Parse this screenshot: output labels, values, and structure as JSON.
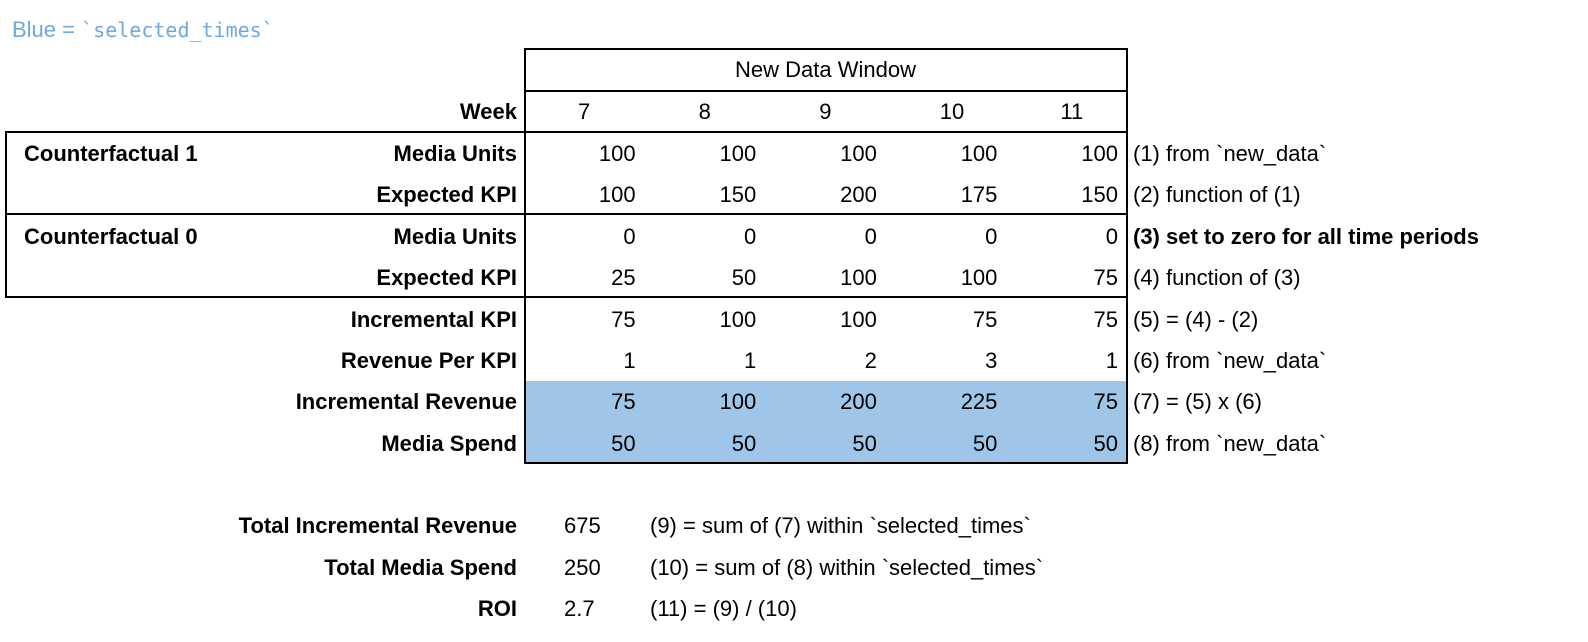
{
  "legend": {
    "prefix": "Blue = ",
    "code": "`selected_times`",
    "color": "#6fa8dc",
    "highlight_color": "#9fc5e8"
  },
  "header": {
    "window_title": "New Data Window",
    "week_label": "Week",
    "weeks": [
      "7",
      "8",
      "9",
      "10",
      "11"
    ]
  },
  "groups": [
    {
      "label": "Counterfactual 1"
    },
    {
      "label": "Counterfactual 0"
    }
  ],
  "rows": [
    {
      "label": "Media Units",
      "values": [
        "100",
        "100",
        "100",
        "100",
        "100"
      ],
      "note": "(1) from `new_data`",
      "note_bold": false,
      "highlighted": false
    },
    {
      "label": "Expected KPI",
      "values": [
        "100",
        "150",
        "200",
        "175",
        "150"
      ],
      "note": "(2) function of (1)",
      "note_bold": false,
      "highlighted": false
    },
    {
      "label": "Media Units",
      "values": [
        "0",
        "0",
        "0",
        "0",
        "0"
      ],
      "note": "(3) set to zero for all time periods",
      "note_bold": true,
      "highlighted": false
    },
    {
      "label": "Expected KPI",
      "values": [
        "25",
        "50",
        "100",
        "100",
        "75"
      ],
      "note": "(4) function of (3)",
      "note_bold": false,
      "highlighted": false
    },
    {
      "label": "Incremental KPI",
      "values": [
        "75",
        "100",
        "100",
        "75",
        "75"
      ],
      "note": "(5) = (4) - (2)",
      "note_bold": false,
      "highlighted": false
    },
    {
      "label": "Revenue Per KPI",
      "values": [
        "1",
        "1",
        "2",
        "3",
        "1"
      ],
      "note": "(6) from `new_data`",
      "note_bold": false,
      "highlighted": false
    },
    {
      "label": "Incremental Revenue",
      "values": [
        "75",
        "100",
        "200",
        "225",
        "75"
      ],
      "note": "(7) = (5) x (6)",
      "note_bold": false,
      "highlighted": true
    },
    {
      "label": "Media Spend",
      "values": [
        "50",
        "50",
        "50",
        "50",
        "50"
      ],
      "note": "(8) from `new_data`",
      "note_bold": false,
      "highlighted": true
    }
  ],
  "totals": [
    {
      "label": "Total Incremental Revenue",
      "value": "675",
      "note": "(9) = sum of (7) within `selected_times`"
    },
    {
      "label": "Total Media Spend",
      "value": "250",
      "note": "(10) = sum of (8) within `selected_times`"
    },
    {
      "label": "ROI",
      "value": "2.7",
      "note": "(11) = (9) / (10)"
    }
  ]
}
